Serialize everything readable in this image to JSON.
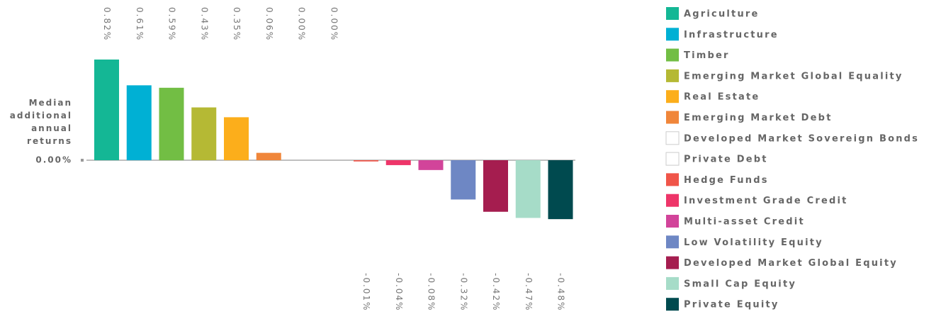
{
  "chart_data": {
    "type": "bar",
    "y_label": "Median additional annual returns",
    "categories": [
      "Agriculture",
      "Infrastructure",
      "Timber",
      "Emerging Market Global Equality",
      "Real Estate",
      "Emerging Market Debt",
      "Developed Market Sovereign Bonds",
      "Private Debt",
      "Hedge Funds",
      "Investment Grade Credit",
      "Multi-asset Credit",
      "Low Volatility Equity",
      "Developed Market Global Equity",
      "Small Cap Equity",
      "Private Equity"
    ],
    "values": [
      0.82,
      0.61,
      0.59,
      0.43,
      0.35,
      0.06,
      0.0,
      0.0,
      -0.01,
      -0.04,
      -0.08,
      -0.32,
      -0.42,
      -0.47,
      -0.48
    ],
    "value_labels": [
      "0.82%",
      "0.61%",
      "0.59%",
      "0.43%",
      "0.35%",
      "0.06%",
      "0.00%",
      "0.00%",
      "-0.01%",
      "-0.04%",
      "-0.08%",
      "-0.32%",
      "-0.42%",
      "-0.47%",
      "-0.48%"
    ],
    "colors": [
      "#14b795",
      "#00b0d4",
      "#72be44",
      "#b5b934",
      "#fcae1b",
      "#f0863a",
      "#ffffff",
      "#ffffff",
      "#f05549",
      "#ee3569",
      "#d2449a",
      "#6e87c4",
      "#a51d4f",
      "#a6dcc8",
      "#004a4f"
    ],
    "ylim": [
      -0.82,
      0.82
    ],
    "yticks": [
      {
        "value": 0,
        "label": "0.00%"
      }
    ],
    "legend": "right"
  }
}
